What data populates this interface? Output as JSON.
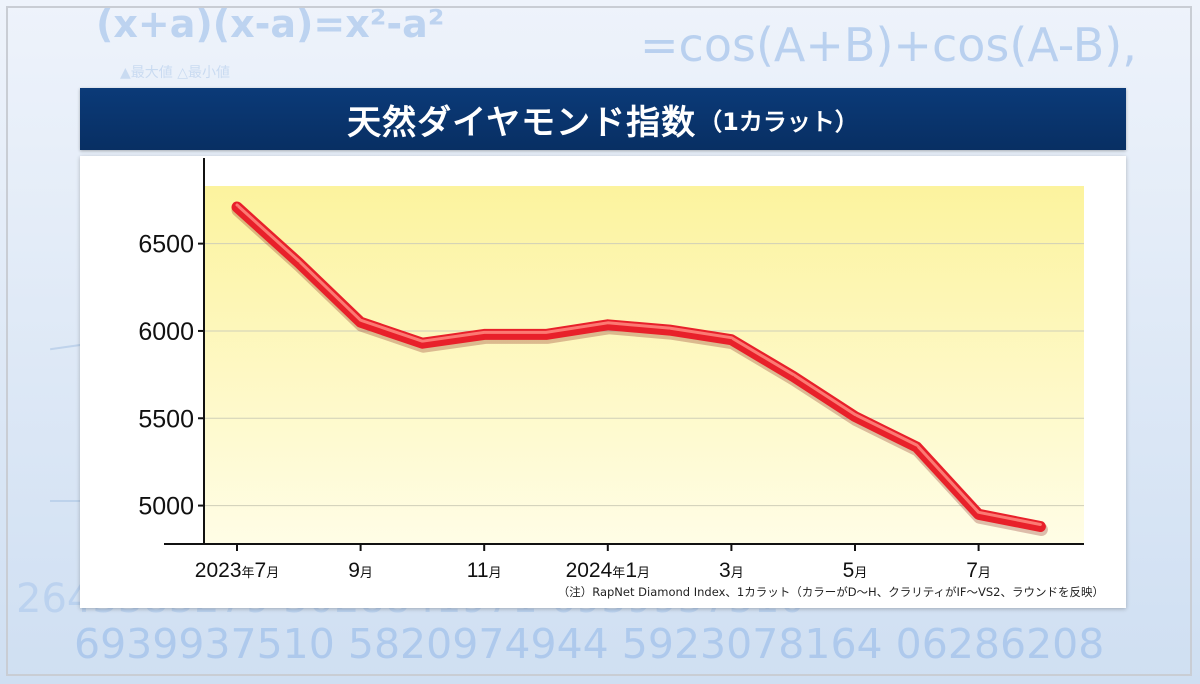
{
  "background": {
    "formula_top_left": "(x+a)(x-a)=x²-a²",
    "formula_top_right": "=cos(A+B)+cos(A-B),",
    "formula_small": "▲最大値 △最小値",
    "digits_line_1": "2643383279 5028841971 6939937510",
    "digits_line_2": "6939937510 5820974944 5923078164 06286208"
  },
  "title": {
    "main": "天然ダイヤモンド指数",
    "sub": "（1カラット）"
  },
  "note": "（注）RapNet Diamond Index、1カラット（カラーがD～H、クラリティがIF～VS2、ラウンドを反映）",
  "colors": {
    "title_bg": "#0b3a78",
    "plot_bg_top": "#fcf39e",
    "plot_bg_bottom": "#fffde6",
    "line": "#e8202a",
    "line_highlight": "#ff8a80"
  },
  "chart_data": {
    "type": "line",
    "title": "天然ダイヤモンド指数（1カラット）",
    "xlabel": "",
    "ylabel": "",
    "ylim": [
      4780,
      6830
    ],
    "yticks": [
      "5000",
      "5500",
      "6000",
      "6500"
    ],
    "grid": true,
    "x_labels": [
      {
        "num": "2023",
        "unit": "年",
        "num2": "7",
        "unit2": "月",
        "index": 0
      },
      {
        "num": "9",
        "unit": "月",
        "index": 2
      },
      {
        "num": "11",
        "unit": "月",
        "index": 4
      },
      {
        "num": "2024",
        "unit": "年",
        "num2": "1",
        "unit2": "月",
        "index": 6
      },
      {
        "num": "3",
        "unit": "月",
        "index": 8
      },
      {
        "num": "5",
        "unit": "月",
        "index": 10
      },
      {
        "num": "7",
        "unit": "月",
        "index": 12
      }
    ],
    "series": [
      {
        "x": [
          "2023-07",
          "2023-08",
          "2023-09",
          "2023-10",
          "2023-11",
          "2023-12",
          "2024-01",
          "2024-02",
          "2024-03",
          "2024-04",
          "2024-05",
          "2024-06",
          "2024-07",
          "2024-08"
        ],
        "values": [
          6710,
          6390,
          6050,
          5930,
          5980,
          5980,
          6035,
          6005,
          5950,
          5740,
          5510,
          5335,
          4950,
          4880
        ]
      }
    ]
  }
}
